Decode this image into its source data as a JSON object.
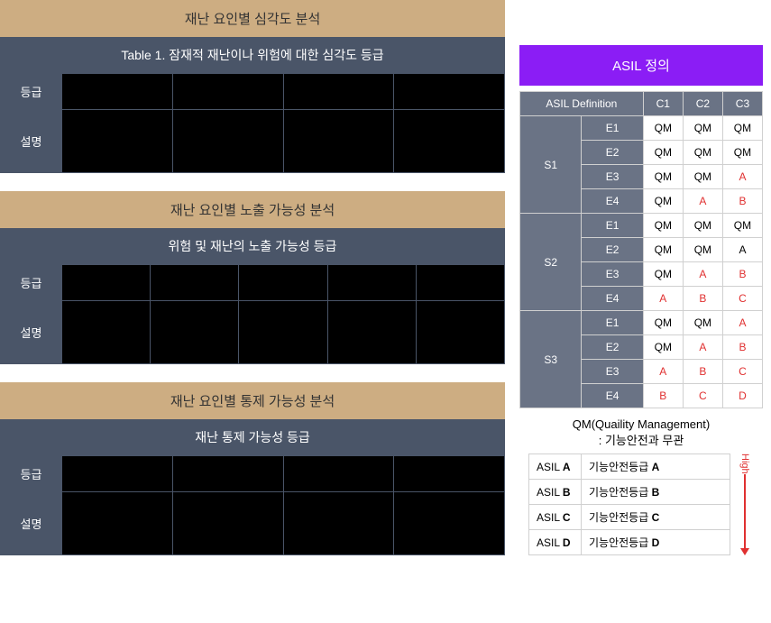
{
  "left": {
    "sections": [
      {
        "header": "재난 요인별 심각도 분석",
        "subheader": "Table 1. 잠재적 재난이나 위험에 대한 심각도 등급",
        "row_labels": [
          "등급",
          "설명"
        ],
        "cols": 4
      },
      {
        "header": "재난 요인별 노출 가능성 분석",
        "subheader": "위험 및 재난의 노출 가능성 등급",
        "row_labels": [
          "등급",
          "설명"
        ],
        "cols": 5
      },
      {
        "header": "재난 요인별 통제 가능성 분석",
        "subheader": "재난 통제 가능성 등급",
        "row_labels": [
          "등급",
          "설명"
        ],
        "cols": 4
      }
    ]
  },
  "right": {
    "header": "ASIL 정의",
    "definition_label": "ASIL Definition",
    "c_headers": [
      "C1",
      "C2",
      "C3"
    ],
    "s_groups": [
      {
        "s": "S1",
        "rows": [
          {
            "e": "E1",
            "c1": "QM",
            "c2": "QM",
            "c3": "QM",
            "red": []
          },
          {
            "e": "E2",
            "c1": "QM",
            "c2": "QM",
            "c3": "QM",
            "red": []
          },
          {
            "e": "E3",
            "c1": "QM",
            "c2": "QM",
            "c3": "A",
            "red": [
              "c3"
            ]
          },
          {
            "e": "E4",
            "c1": "QM",
            "c2": "A",
            "c3": "B",
            "red": [
              "c2",
              "c3"
            ]
          }
        ]
      },
      {
        "s": "S2",
        "rows": [
          {
            "e": "E1",
            "c1": "QM",
            "c2": "QM",
            "c3": "QM",
            "red": []
          },
          {
            "e": "E2",
            "c1": "QM",
            "c2": "QM",
            "c3": "A",
            "red": []
          },
          {
            "e": "E3",
            "c1": "QM",
            "c2": "A",
            "c3": "B",
            "red": [
              "c2",
              "c3"
            ]
          },
          {
            "e": "E4",
            "c1": "A",
            "c2": "B",
            "c3": "C",
            "red": [
              "c1",
              "c2",
              "c3"
            ]
          }
        ]
      },
      {
        "s": "S3",
        "rows": [
          {
            "e": "E1",
            "c1": "QM",
            "c2": "QM",
            "c3": "A",
            "red": [
              "c3"
            ]
          },
          {
            "e": "E2",
            "c1": "QM",
            "c2": "A",
            "c3": "B",
            "red": [
              "c2",
              "c3"
            ]
          },
          {
            "e": "E3",
            "c1": "A",
            "c2": "B",
            "c3": "C",
            "red": [
              "c1",
              "c2",
              "c3"
            ]
          },
          {
            "e": "E4",
            "c1": "B",
            "c2": "C",
            "c3": "D",
            "red": [
              "c1",
              "c2",
              "c3"
            ]
          }
        ]
      }
    ],
    "qm_note_line1": "QM(Quaility Management)",
    "qm_note_line2": ": 기능안전과 무관",
    "legend": [
      {
        "k": "ASIL A",
        "v": "기능안전등급 A",
        "bold": "A"
      },
      {
        "k": "ASIL B",
        "v": "기능안전등급 B",
        "bold": "B"
      },
      {
        "k": "ASIL C",
        "v": "기능안전등급 C",
        "bold": "C"
      },
      {
        "k": "ASIL D",
        "v": "기능안전등급 D",
        "bold": "D"
      }
    ],
    "high_label": "High"
  },
  "colors": {
    "section_header_bg": "#cdad82",
    "subheader_bg": "#4a5568",
    "asil_header_bg": "#8b1df5",
    "red": "#e03030"
  }
}
